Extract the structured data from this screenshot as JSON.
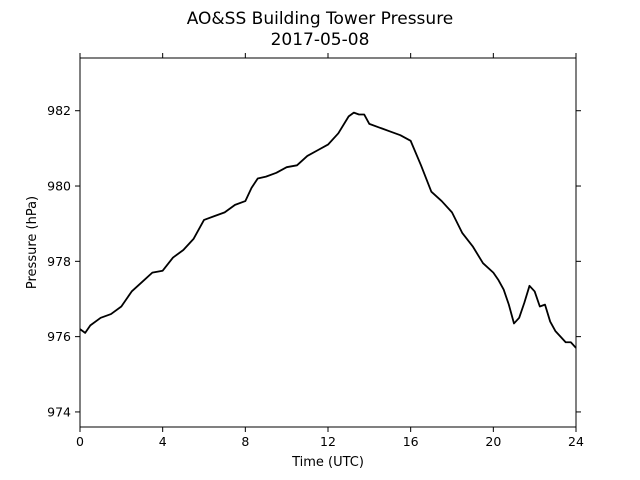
{
  "chart_data": {
    "type": "line",
    "title": "AO&SS Building Tower Pressure",
    "subtitle": "2017-05-08",
    "xlabel": "Time (UTC)",
    "ylabel": "Pressure (hPa)",
    "xlim": [
      0,
      24
    ],
    "ylim": [
      973.6,
      983.4
    ],
    "xticks": [
      0,
      4,
      8,
      12,
      16,
      20,
      24
    ],
    "xtick_labels": [
      "0",
      "4",
      "8",
      "12",
      "16",
      "20",
      "24"
    ],
    "yticks": [
      974,
      976,
      978,
      980,
      982
    ],
    "ytick_labels": [
      "974",
      "976",
      "978",
      "980",
      "982"
    ],
    "grid": false,
    "legend": "none",
    "line_color": "#000000",
    "series": [
      {
        "x": [
          0,
          0.25,
          0.5,
          1.0,
          1.5,
          2.0,
          2.5,
          3.0,
          3.5,
          4.0,
          4.5,
          5.0,
          5.5,
          6.0,
          6.5,
          7.0,
          7.5,
          8.0,
          8.3,
          8.6,
          9.0,
          9.5,
          10.0,
          10.5,
          11.0,
          11.5,
          12.0,
          12.5,
          13.0,
          13.25,
          13.5,
          13.75,
          14.0,
          14.5,
          15.0,
          15.5,
          16.0,
          16.5,
          17.0,
          17.5,
          18.0,
          18.5,
          19.0,
          19.5,
          20.0,
          20.25,
          20.5,
          20.75,
          21.0,
          21.25,
          21.5,
          21.75,
          22.0,
          22.25,
          22.5,
          22.75,
          23.0,
          23.25,
          23.5,
          23.75,
          24.0
        ],
        "y": [
          976.2,
          976.1,
          976.3,
          976.5,
          976.6,
          976.8,
          977.2,
          977.45,
          977.7,
          977.75,
          978.1,
          978.3,
          978.6,
          979.1,
          979.2,
          979.3,
          979.5,
          979.6,
          979.95,
          980.2,
          980.25,
          980.35,
          980.5,
          980.55,
          980.8,
          980.95,
          981.1,
          981.4,
          981.85,
          981.95,
          981.9,
          981.9,
          981.65,
          981.55,
          981.45,
          981.35,
          981.2,
          980.55,
          979.85,
          979.6,
          979.3,
          978.75,
          978.4,
          977.95,
          977.7,
          977.5,
          977.25,
          976.85,
          976.35,
          976.5,
          976.9,
          977.35,
          977.2,
          976.8,
          976.85,
          976.4,
          976.15,
          976.0,
          975.85,
          975.85,
          975.7
        ]
      }
    ]
  }
}
